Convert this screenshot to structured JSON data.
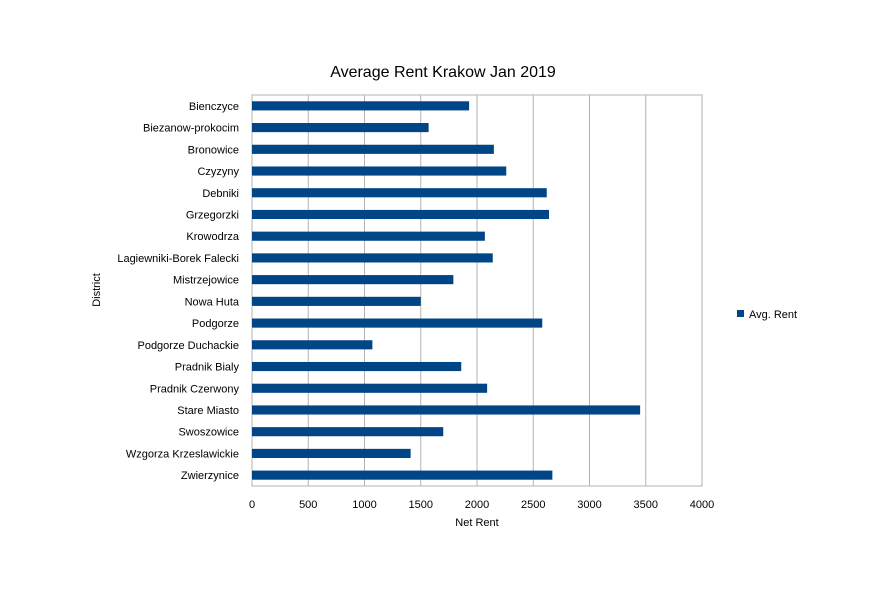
{
  "chart_data": {
    "type": "bar",
    "orientation": "horizontal",
    "title": "Average Rent Krakow Jan 2019",
    "xlabel": "Net Rent",
    "ylabel": "District",
    "xlim": [
      0,
      4000
    ],
    "x_ticks": [
      0,
      500,
      1000,
      1500,
      2000,
      2500,
      3000,
      3500,
      4000
    ],
    "grid": "vertical",
    "legend_position": "right",
    "categories": [
      "Bienczyce",
      "Biezanow-prokocim",
      "Bronowice",
      "Czyzyny",
      "Debniki",
      "Grzegorzki",
      "Krowodrza",
      "Lagiewniki-Borek Falecki",
      "Mistrzejowice",
      "Nowa Huta",
      "Podgorze",
      "Podgorze Duchackie",
      "Pradnik Bialy",
      "Pradnik Czerwony",
      "Stare Miasto",
      "Swoszowice",
      "Wzgorza Krzeslawickie",
      "Zwierzynice"
    ],
    "series": [
      {
        "name": "Avg. Rent",
        "color": "#004586",
        "values": [
          1930,
          1570,
          2150,
          2260,
          2620,
          2640,
          2070,
          2140,
          1790,
          1500,
          2580,
          1070,
          1860,
          2090,
          3450,
          1700,
          1410,
          2670
        ]
      }
    ]
  }
}
